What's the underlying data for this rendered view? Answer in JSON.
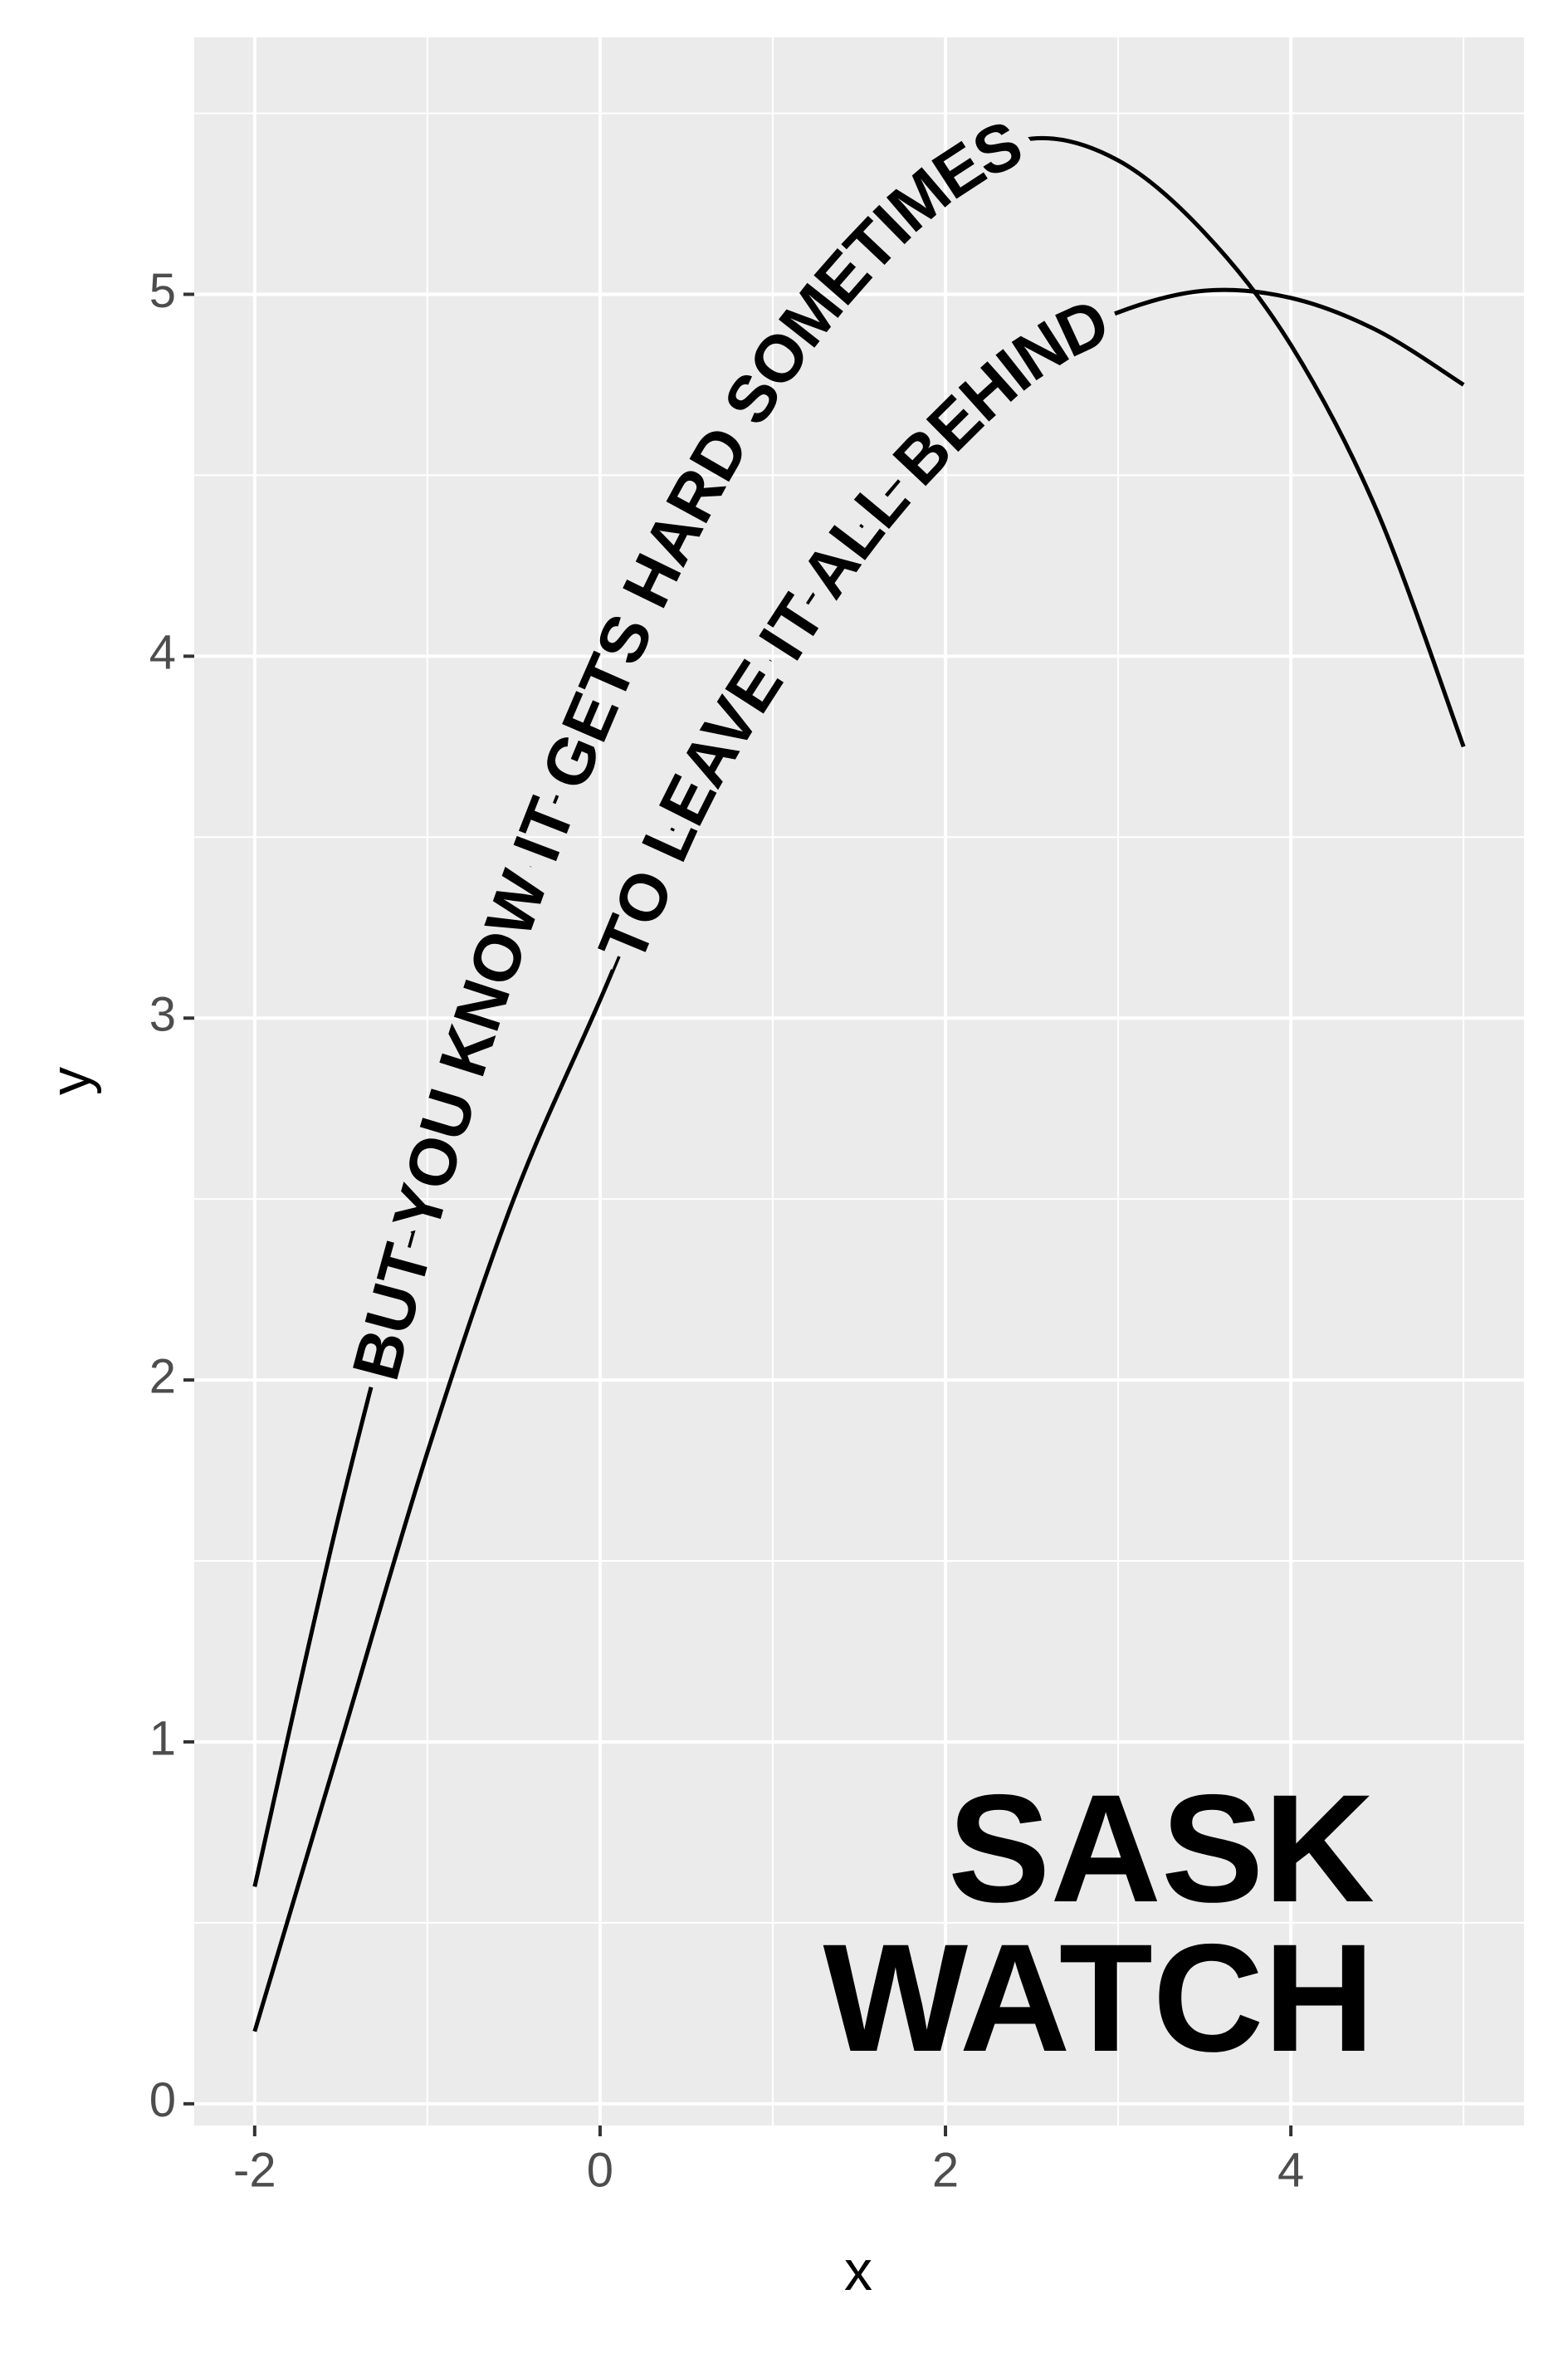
{
  "chart_data": {
    "type": "line",
    "x": [
      -2,
      -1.5,
      -1,
      -0.5,
      0,
      0.5,
      1,
      1.5,
      2,
      2.5,
      3,
      3.5,
      4,
      4.5,
      5
    ],
    "series": [
      {
        "name": "BUT YOU KNOW IT GETS HARD SOMETIMES",
        "color": "#000000",
        "values": [
          0.6,
          1.65,
          2.55,
          3.3,
          3.9,
          4.4,
          4.8,
          5.1,
          5.32,
          5.43,
          5.37,
          5.17,
          4.86,
          4.4,
          3.75
        ]
      },
      {
        "name": "TO LEAVE IT ALL BEHIND",
        "color": "#000000",
        "values": [
          0.2,
          1.0,
          1.8,
          2.5,
          3.05,
          3.6,
          4.0,
          4.35,
          4.62,
          4.83,
          4.95,
          5.01,
          4.99,
          4.9,
          4.75
        ]
      }
    ],
    "xlim": [
      -2.35,
      5.35
    ],
    "ylim": [
      -0.06,
      5.71
    ],
    "xticks": [
      -2,
      0,
      2,
      4
    ],
    "yticks": [
      0,
      1,
      2,
      3,
      4,
      5
    ],
    "xlabel": "x",
    "ylabel": "y",
    "annotation": [
      "SASK",
      "WATCH"
    ],
    "grid": true
  }
}
